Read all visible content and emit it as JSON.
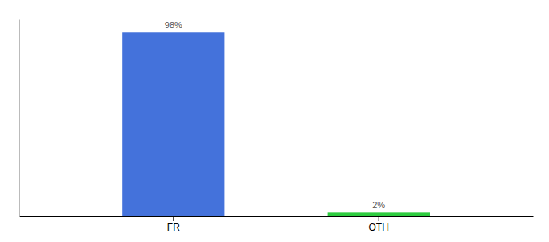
{
  "chart_data": {
    "type": "bar",
    "categories": [
      "FR",
      "OTH"
    ],
    "values": [
      98,
      2
    ],
    "value_labels": [
      "98%",
      "2%"
    ],
    "colors": [
      "#4472db",
      "#2ecc40"
    ],
    "ylim": [
      0,
      105
    ],
    "data_labels": true,
    "tick_labels": "x"
  }
}
